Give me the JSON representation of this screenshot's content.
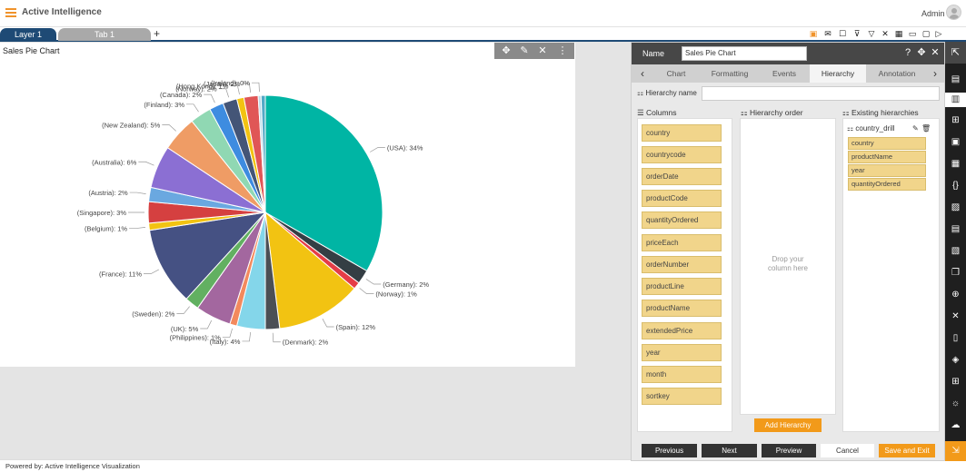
{
  "header": {
    "title": "Active Intelligence",
    "user": "Admin"
  },
  "tabs": {
    "layer": "Layer 1",
    "tab1": "Tab 1",
    "add": "+"
  },
  "chart_panel": {
    "title": "Sales Pie Chart"
  },
  "chart_data": {
    "type": "pie",
    "title": "Sales Pie Chart",
    "slices": [
      {
        "label": "(USA): 34%",
        "value": 34,
        "color": "#00b5a4"
      },
      {
        "label": "(Germany): 2%",
        "value": 2,
        "color": "#343e44"
      },
      {
        "label": "(Norway): 1%",
        "value": 1,
        "color": "#e53d47"
      },
      {
        "label": "(Spain): 12%",
        "value": 12,
        "color": "#f2c312"
      },
      {
        "label": "(Denmark): 2%",
        "value": 2,
        "color": "#4b4f55"
      },
      {
        "label": "(Italy): 4%",
        "value": 4,
        "color": "#84d6ea"
      },
      {
        "label": "(Philippines): 1%",
        "value": 1,
        "color": "#f3895d"
      },
      {
        "label": "(UK): 5%",
        "value": 5,
        "color": "#a3679f"
      },
      {
        "label": "(Sweden): 2%",
        "value": 2,
        "color": "#62b061"
      },
      {
        "label": "(France): 11%",
        "value": 11,
        "color": "#455183"
      },
      {
        "label": "(Belgium): 1%",
        "value": 1,
        "color": "#f2c312"
      },
      {
        "label": "(Singapore): 3%",
        "value": 3,
        "color": "#d54040"
      },
      {
        "label": "(Austria): 2%",
        "value": 2,
        "color": "#6aa8e0"
      },
      {
        "label": "(Australia): 6%",
        "value": 6,
        "color": "#8b6fd3"
      },
      {
        "label": "(New Zealand): 5%",
        "value": 5,
        "color": "#ef9c65"
      },
      {
        "label": "(Finland): 3%",
        "value": 3,
        "color": "#90d8b3"
      },
      {
        "label": "(Canada): 2%",
        "value": 2,
        "color": "#3e8ce0"
      },
      {
        "label": "(Norway): 2%",
        "value": 2,
        "color": "#445577"
      },
      {
        "label": "(Hong Kong): 1%",
        "value": 1,
        "color": "#f2c312"
      },
      {
        "label": "(Japan): 2%",
        "value": 2,
        "color": "#e05656"
      },
      {
        "label": "(Ireland): 0%",
        "value": 0.4,
        "color": "#b9dbe8"
      },
      {
        "label": "",
        "value": 0.6,
        "color": "#53a9c6"
      }
    ]
  },
  "editor": {
    "name_label": "Name",
    "name_value": "Sales Pie Chart",
    "tabs": [
      "Chart",
      "Formatting",
      "Events",
      "Hierarchy",
      "Annotation"
    ],
    "hierarchy_name_label": "Hierarchy name",
    "columns_head": "Columns",
    "order_head": "Hierarchy order",
    "existing_head": "Existing hierarchies",
    "columns": [
      "country",
      "countrycode",
      "orderDate",
      "productCode",
      "quantityOrdered",
      "priceEach",
      "orderNumber",
      "productLine",
      "productName",
      "extendedPrice",
      "year",
      "month",
      "sortkey"
    ],
    "drop_text_1": "Drop your",
    "drop_text_2": "column here",
    "add_hierarchy": "Add Hierarchy",
    "existing_group": "country_drill",
    "existing_items": [
      "country",
      "productName",
      "year",
      "quantityOrdered"
    ],
    "buttons": {
      "previous": "Previous",
      "next": "Next",
      "preview": "Preview",
      "cancel": "Cancel",
      "save_exit": "Save and Exit"
    }
  },
  "footer": {
    "text": "Powered by: Active Intelligence Visualization"
  }
}
